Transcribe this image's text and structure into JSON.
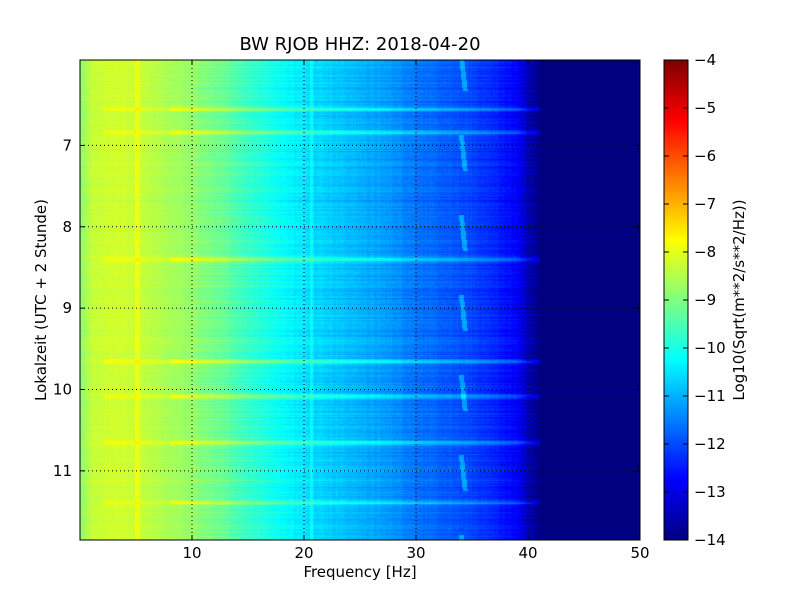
{
  "chart_data": {
    "type": "heatmap",
    "title": "BW RJOB HHZ: 2018-04-20",
    "xlabel": "Frequency [Hz]",
    "ylabel": "Lokalzeit (UTC + 2 Stunde)",
    "xlim": [
      0,
      50
    ],
    "ylim": [
      11.85,
      5.95
    ],
    "x_ticks": [
      10,
      20,
      30,
      40,
      50
    ],
    "y_ticks": [
      7,
      8,
      9,
      10,
      11
    ],
    "y_inverted": true,
    "grid": true,
    "colormap": "jet",
    "colorbar": {
      "label": "Log10(Sqrt(m**2/s**2/Hz))",
      "range": [
        -14,
        -4
      ],
      "ticks": [
        -4,
        -5,
        -6,
        -7,
        -8,
        -9,
        -10,
        -11,
        -12,
        -13,
        -14
      ]
    },
    "spectrum_profile": {
      "frequency_hz": [
        0,
        1,
        3,
        5,
        8,
        10,
        13,
        15,
        18,
        20,
        23,
        25,
        28,
        30,
        33,
        35,
        37,
        39,
        40,
        41,
        42,
        50
      ],
      "log10_psd": [
        -8.9,
        -8.3,
        -8.2,
        -8.3,
        -8.6,
        -8.8,
        -9.3,
        -9.7,
        -10.2,
        -10.5,
        -10.8,
        -11.0,
        -11.3,
        -11.6,
        -11.9,
        -12.1,
        -12.4,
        -12.8,
        -13.4,
        -14.0,
        -14.0,
        -14.0
      ]
    },
    "horizontal_bands_local_time": [
      6.55,
      6.84,
      8.4,
      9.65,
      10.08,
      10.65,
      11.38
    ]
  }
}
